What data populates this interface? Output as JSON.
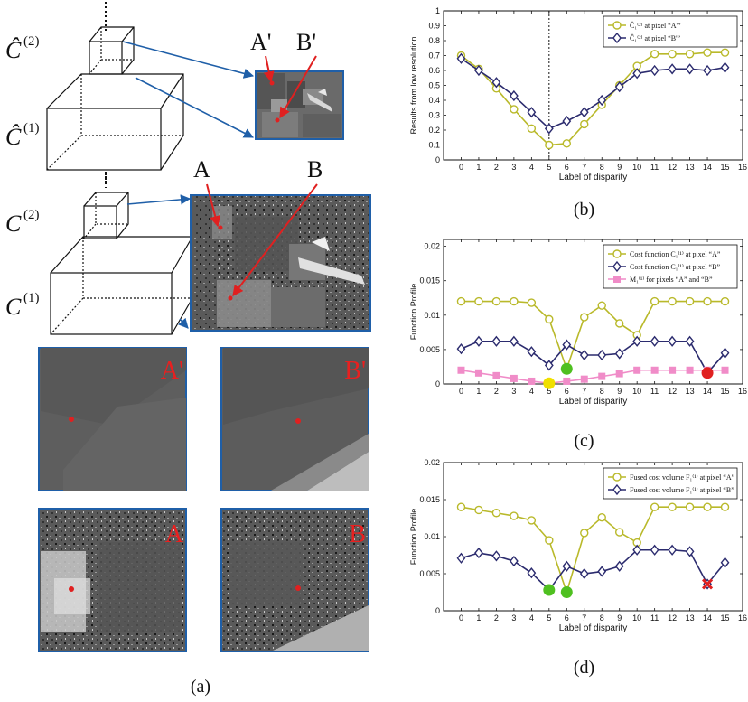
{
  "panel_a": {
    "caption": "(a)",
    "labels": {
      "c2_hat": "Ĉ",
      "c2_hat_sup": "(2)",
      "c1_hat": "Ĉ",
      "c1_hat_sup": "(1)",
      "c2": "C",
      "c2_sup": "(2)",
      "c1": "C",
      "c1_sup": "(1)",
      "a_prime": "A'",
      "b_prime": "B'",
      "a": "A",
      "b": "B"
    },
    "crop_labels": [
      "A'",
      "B'",
      "A",
      "B"
    ],
    "colors": {
      "arrow": "#1f5fa8",
      "marker": "#e82020",
      "frame": "#1f5fa8"
    }
  },
  "chart_data": [
    {
      "id": "b",
      "type": "line",
      "caption": "(b)",
      "title": "",
      "xlabel": "Label of disparity",
      "ylabel": "Results from low resolution",
      "xlim": [
        -1,
        16
      ],
      "ylim": [
        0,
        1
      ],
      "xticks": [
        0,
        1,
        2,
        3,
        4,
        5,
        6,
        7,
        8,
        9,
        10,
        11,
        12,
        13,
        14,
        15,
        16
      ],
      "yticks": [
        0,
        0.1,
        0.2,
        0.3,
        0.4,
        0.5,
        0.6,
        0.7,
        0.8,
        0.9,
        1
      ],
      "ytick_labels": [
        "0",
        "0.1",
        "0.2",
        "0.3",
        "0.4",
        "0.5",
        "0.6",
        "0.7",
        "0.8",
        "0.9",
        "1"
      ],
      "vline_x": 5,
      "legend_placement": "top-right",
      "x": [
        0,
        1,
        2,
        3,
        4,
        5,
        6,
        7,
        8,
        9,
        10,
        11,
        12,
        13,
        14,
        15
      ],
      "series": [
        {
          "name": "Ĉ₁⁽²⁾ at pixel “A'”",
          "color": "#b9b92a",
          "marker": "circle",
          "values": [
            0.7,
            0.61,
            0.48,
            0.34,
            0.21,
            0.1,
            0.11,
            0.24,
            0.37,
            0.5,
            0.63,
            0.71,
            0.71,
            0.71,
            0.72,
            0.72
          ]
        },
        {
          "name": "Ĉ₁⁽²⁾ at pixel “B'”",
          "color": "#2b2b6e",
          "marker": "diamond",
          "values": [
            0.68,
            0.6,
            0.52,
            0.43,
            0.32,
            0.21,
            0.26,
            0.32,
            0.4,
            0.49,
            0.58,
            0.6,
            0.61,
            0.61,
            0.6,
            0.62
          ]
        }
      ]
    },
    {
      "id": "c",
      "type": "line",
      "caption": "(c)",
      "title": "",
      "xlabel": "Label of disparity",
      "ylabel": "Function Profile",
      "xlim": [
        -1,
        16
      ],
      "ylim": [
        0,
        0.021
      ],
      "xticks": [
        0,
        1,
        2,
        3,
        4,
        5,
        6,
        7,
        8,
        9,
        10,
        11,
        12,
        13,
        14,
        15,
        16
      ],
      "yticks": [
        0,
        0.005,
        0.01,
        0.015,
        0.02
      ],
      "ytick_labels": [
        "0",
        "0.005",
        "0.01",
        "0.015",
        "0.02"
      ],
      "legend_placement": "top-right",
      "x": [
        0,
        1,
        2,
        3,
        4,
        5,
        6,
        7,
        8,
        9,
        10,
        11,
        12,
        13,
        14,
        15
      ],
      "series": [
        {
          "name": "Cost function C₁⁽¹⁾ at pixel “A”",
          "color": "#b9b92a",
          "marker": "circle",
          "values": [
            0.012,
            0.012,
            0.012,
            0.012,
            0.0118,
            0.0094,
            0.0022,
            0.0097,
            0.0114,
            0.0088,
            0.0071,
            0.012,
            0.012,
            0.012,
            0.012,
            0.012
          ]
        },
        {
          "name": "Cost function C₁⁽¹⁾ at pixel “B”",
          "color": "#2b2b6e",
          "marker": "diamond",
          "values": [
            0.0051,
            0.0062,
            0.0062,
            0.0062,
            0.0047,
            0.0027,
            0.0057,
            0.0042,
            0.0042,
            0.0044,
            0.0062,
            0.0062,
            0.0062,
            0.0062,
            0.0016,
            0.0045
          ]
        },
        {
          "name": "M₁⁽¹⁾ for pixels “A” and “B”",
          "color": "#f08cc8",
          "marker": "square",
          "values": [
            0.002,
            0.0016,
            0.0012,
            0.0008,
            0.0004,
            0.0001,
            0.0004,
            0.0007,
            0.0011,
            0.0015,
            0.002,
            0.002,
            0.002,
            0.002,
            0.002,
            0.002
          ]
        }
      ],
      "highlights": [
        {
          "x": 5,
          "y": 0.0001,
          "color": "#f0e000",
          "shape": "dot"
        },
        {
          "x": 6,
          "y": 0.0022,
          "color": "#4fc020",
          "shape": "dot"
        },
        {
          "x": 14,
          "y": 0.0016,
          "color": "#e02020",
          "shape": "dot"
        }
      ]
    },
    {
      "id": "d",
      "type": "line",
      "caption": "(d)",
      "title": "",
      "xlabel": "Label of disparity",
      "ylabel": "Function Profile",
      "xlim": [
        -1,
        16
      ],
      "ylim": [
        0,
        0.02
      ],
      "xticks": [
        0,
        1,
        2,
        3,
        4,
        5,
        6,
        7,
        8,
        9,
        10,
        11,
        12,
        13,
        14,
        15,
        16
      ],
      "yticks": [
        0,
        0.005,
        0.01,
        0.015,
        0.02
      ],
      "ytick_labels": [
        "0",
        "0.005",
        "0.01",
        "0.015",
        "0.02"
      ],
      "legend_placement": "top-right",
      "x": [
        0,
        1,
        2,
        3,
        4,
        5,
        6,
        7,
        8,
        9,
        10,
        11,
        12,
        13,
        14,
        15
      ],
      "series": [
        {
          "name": "Fused cost volume F₁⁽¹⁾ at pixel “A”",
          "color": "#b9b92a",
          "marker": "circle",
          "values": [
            0.014,
            0.0136,
            0.0132,
            0.0128,
            0.0122,
            0.0095,
            0.0025,
            0.0105,
            0.0126,
            0.0106,
            0.0092,
            0.014,
            0.014,
            0.014,
            0.014,
            0.014
          ]
        },
        {
          "name": "Fused cost volume F₁⁽¹⁾ at pixel “B”",
          "color": "#2b2b6e",
          "marker": "diamond",
          "values": [
            0.0071,
            0.0078,
            0.0074,
            0.0067,
            0.0051,
            0.0028,
            0.006,
            0.005,
            0.0053,
            0.006,
            0.0082,
            0.0082,
            0.0082,
            0.008,
            0.0036,
            0.0065
          ]
        }
      ],
      "highlights": [
        {
          "x": 5,
          "y": 0.0028,
          "color": "#4fc020",
          "shape": "dot"
        },
        {
          "x": 6,
          "y": 0.0025,
          "color": "#4fc020",
          "shape": "dot"
        },
        {
          "x": 14,
          "y": 0.0036,
          "color": "#e02020",
          "shape": "cross"
        }
      ]
    }
  ]
}
